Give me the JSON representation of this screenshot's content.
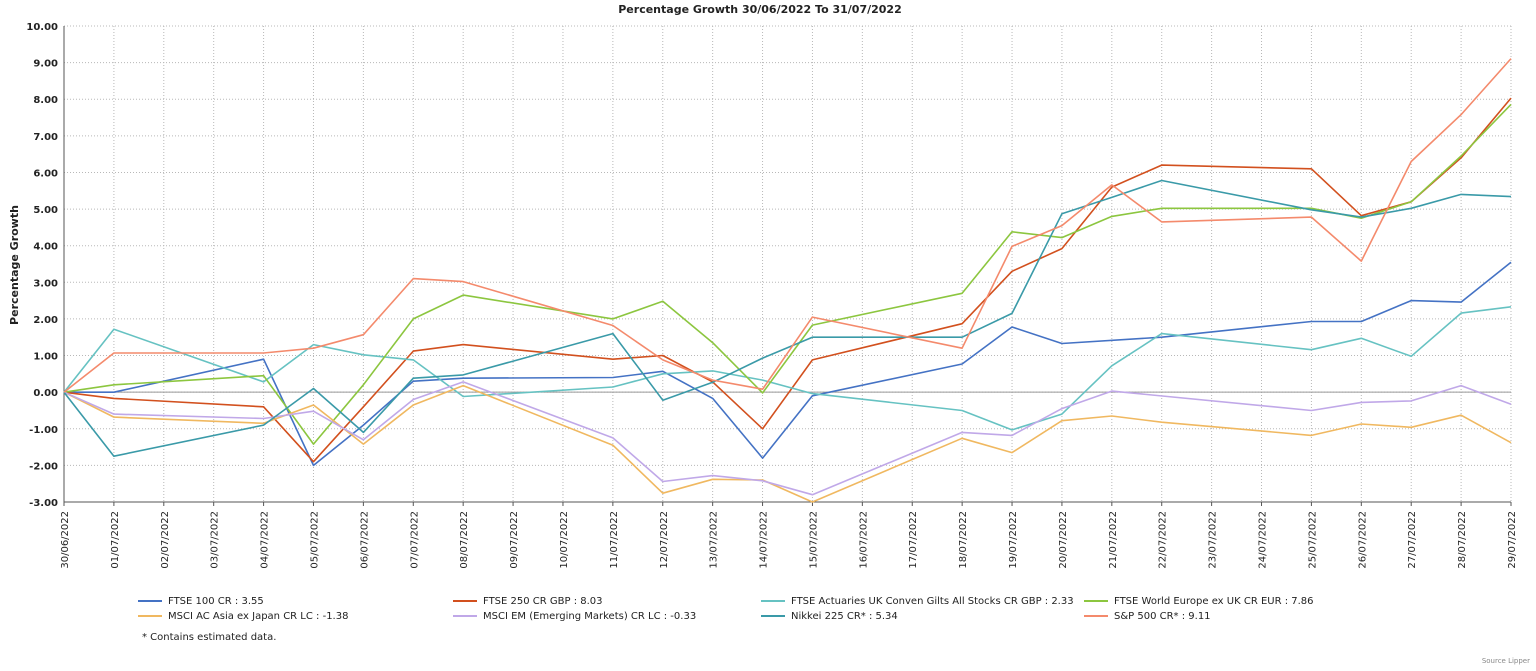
{
  "chart_data": {
    "type": "line",
    "title": "Percentage Growth 30/06/2022 To 31/07/2022",
    "ylabel": "Percentage Growth",
    "ylim": [
      -3,
      10
    ],
    "yticks": [
      "10.00",
      "9.00",
      "8.00",
      "7.00",
      "6.00",
      "5.00",
      "4.00",
      "3.00",
      "2.00",
      "1.00",
      "0.00",
      "-1.00",
      "-2.00",
      "-3.00"
    ],
    "grid": true,
    "categories": [
      "30/06/2022",
      "01/07/2022",
      "02/07/2022",
      "03/07/2022",
      "04/07/2022",
      "05/07/2022",
      "06/07/2022",
      "07/07/2022",
      "08/07/2022",
      "09/07/2022",
      "10/07/2022",
      "11/07/2022",
      "12/07/2022",
      "13/07/2022",
      "14/07/2022",
      "15/07/2022",
      "16/07/2022",
      "17/07/2022",
      "18/07/2022",
      "19/07/2022",
      "20/07/2022",
      "21/07/2022",
      "22/07/2022",
      "23/07/2022",
      "24/07/2022",
      "25/07/2022",
      "26/07/2022",
      "27/07/2022",
      "28/07/2022",
      "29/07/2022"
    ],
    "series": [
      {
        "name": "FTSE 100 CR : 3.55",
        "color": "#4472c4",
        "points": [
          [
            0,
            0
          ],
          [
            1,
            0.0
          ],
          [
            4,
            0.9
          ],
          [
            5,
            -2.0
          ],
          [
            6,
            -0.9
          ],
          [
            7,
            0.3
          ],
          [
            8,
            0.38
          ],
          [
            11,
            0.4
          ],
          [
            12,
            0.57
          ],
          [
            13,
            -0.17
          ],
          [
            14,
            -1.8
          ],
          [
            15,
            -0.1
          ],
          [
            18,
            0.77
          ],
          [
            19,
            1.78
          ],
          [
            20,
            1.33
          ],
          [
            22,
            1.5
          ],
          [
            25,
            1.93
          ],
          [
            26,
            1.93
          ],
          [
            27,
            2.5
          ],
          [
            28,
            2.46
          ],
          [
            29,
            3.55
          ]
        ]
      },
      {
        "name": "FTSE 250 CR GBP : 8.03",
        "color": "#d2501e",
        "points": [
          [
            0,
            0
          ],
          [
            1,
            -0.17
          ],
          [
            4,
            -0.4
          ],
          [
            5,
            -1.9
          ],
          [
            6,
            -0.4
          ],
          [
            7,
            1.12
          ],
          [
            8,
            1.3
          ],
          [
            11,
            0.9
          ],
          [
            12,
            1.0
          ],
          [
            13,
            0.28
          ],
          [
            14,
            -1.0
          ],
          [
            15,
            0.88
          ],
          [
            18,
            1.87
          ],
          [
            19,
            3.3
          ],
          [
            20,
            3.92
          ],
          [
            21,
            5.6
          ],
          [
            22,
            6.2
          ],
          [
            25,
            6.1
          ],
          [
            26,
            4.82
          ],
          [
            27,
            5.2
          ],
          [
            28,
            6.4
          ],
          [
            29,
            8.03
          ]
        ]
      },
      {
        "name": "FTSE Actuaries UK Conven Gilts All Stocks CR GBP : 2.33",
        "color": "#66c2c2",
        "points": [
          [
            0,
            0
          ],
          [
            1,
            1.72
          ],
          [
            4,
            0.28
          ],
          [
            5,
            1.3
          ],
          [
            6,
            1.02
          ],
          [
            7,
            0.88
          ],
          [
            8,
            -0.12
          ],
          [
            11,
            0.14
          ],
          [
            12,
            0.5
          ],
          [
            13,
            0.58
          ],
          [
            14,
            0.33
          ],
          [
            15,
            -0.04
          ],
          [
            18,
            -0.5
          ],
          [
            19,
            -1.03
          ],
          [
            20,
            -0.6
          ],
          [
            21,
            0.72
          ],
          [
            22,
            1.6
          ],
          [
            25,
            1.16
          ],
          [
            26,
            1.47
          ],
          [
            27,
            0.98
          ],
          [
            28,
            2.16
          ],
          [
            29,
            2.33
          ]
        ]
      },
      {
        "name": "FTSE World Europe ex UK CR EUR : 7.86",
        "color": "#8cc63f",
        "points": [
          [
            0,
            0
          ],
          [
            1,
            0.2
          ],
          [
            4,
            0.45
          ],
          [
            5,
            -1.42
          ],
          [
            6,
            0.2
          ],
          [
            7,
            2.0
          ],
          [
            8,
            2.65
          ],
          [
            11,
            2.0
          ],
          [
            12,
            2.48
          ],
          [
            13,
            1.35
          ],
          [
            14,
            -0.02
          ],
          [
            15,
            1.83
          ],
          [
            18,
            2.7
          ],
          [
            19,
            4.38
          ],
          [
            20,
            4.22
          ],
          [
            21,
            4.8
          ],
          [
            22,
            5.02
          ],
          [
            25,
            5.02
          ],
          [
            26,
            4.75
          ],
          [
            27,
            5.2
          ],
          [
            28,
            6.45
          ],
          [
            29,
            7.86
          ]
        ]
      },
      {
        "name": "MSCI AC Asia ex Japan CR LC : -1.38",
        "color": "#f0b860",
        "points": [
          [
            0,
            0
          ],
          [
            1,
            -0.68
          ],
          [
            4,
            -0.85
          ],
          [
            5,
            -0.35
          ],
          [
            6,
            -1.42
          ],
          [
            7,
            -0.35
          ],
          [
            8,
            0.18
          ],
          [
            11,
            -1.45
          ],
          [
            12,
            -2.76
          ],
          [
            13,
            -2.38
          ],
          [
            14,
            -2.4
          ],
          [
            15,
            -3.0
          ],
          [
            18,
            -1.26
          ],
          [
            19,
            -1.65
          ],
          [
            20,
            -0.78
          ],
          [
            21,
            -0.65
          ],
          [
            22,
            -0.82
          ],
          [
            25,
            -1.18
          ],
          [
            26,
            -0.87
          ],
          [
            27,
            -0.96
          ],
          [
            28,
            -0.63
          ],
          [
            29,
            -1.38
          ]
        ]
      },
      {
        "name": "MSCI EM (Emerging Markets) CR LC : -0.33",
        "color": "#c0a8e8",
        "points": [
          [
            0,
            0
          ],
          [
            1,
            -0.6
          ],
          [
            4,
            -0.72
          ],
          [
            5,
            -0.52
          ],
          [
            6,
            -1.3
          ],
          [
            7,
            -0.2
          ],
          [
            8,
            0.28
          ],
          [
            11,
            -1.25
          ],
          [
            12,
            -2.44
          ],
          [
            13,
            -2.28
          ],
          [
            14,
            -2.42
          ],
          [
            15,
            -2.8
          ],
          [
            18,
            -1.1
          ],
          [
            19,
            -1.18
          ],
          [
            20,
            -0.45
          ],
          [
            21,
            0.03
          ],
          [
            25,
            -0.5
          ],
          [
            26,
            -0.28
          ],
          [
            27,
            -0.24
          ],
          [
            28,
            0.18
          ],
          [
            29,
            -0.33
          ]
        ]
      },
      {
        "name": "Nikkei 225 CR* : 5.34",
        "color": "#3a9aa8",
        "points": [
          [
            0,
            0
          ],
          [
            1,
            -1.75
          ],
          [
            4,
            -0.9
          ],
          [
            5,
            0.1
          ],
          [
            6,
            -1.1
          ],
          [
            7,
            0.38
          ],
          [
            8,
            0.47
          ],
          [
            11,
            1.6
          ],
          [
            12,
            -0.22
          ],
          [
            13,
            0.27
          ],
          [
            14,
            0.93
          ],
          [
            15,
            1.5
          ],
          [
            18,
            1.5
          ],
          [
            19,
            2.15
          ],
          [
            20,
            4.87
          ],
          [
            21,
            5.32
          ],
          [
            22,
            5.78
          ],
          [
            25,
            4.98
          ],
          [
            26,
            4.78
          ],
          [
            27,
            5.02
          ],
          [
            28,
            5.4
          ],
          [
            29,
            5.34
          ]
        ]
      },
      {
        "name": "S&P 500 CR* : 9.11",
        "color": "#f48a6c",
        "points": [
          [
            0,
            0
          ],
          [
            1,
            1.07
          ],
          [
            4,
            1.07
          ],
          [
            5,
            1.2
          ],
          [
            6,
            1.57
          ],
          [
            7,
            3.1
          ],
          [
            8,
            3.02
          ],
          [
            11,
            1.82
          ],
          [
            12,
            0.88
          ],
          [
            13,
            0.33
          ],
          [
            14,
            0.08
          ],
          [
            15,
            2.05
          ],
          [
            18,
            1.2
          ],
          [
            19,
            3.98
          ],
          [
            20,
            4.55
          ],
          [
            21,
            5.66
          ],
          [
            22,
            4.65
          ],
          [
            25,
            4.78
          ],
          [
            26,
            3.58
          ],
          [
            27,
            6.3
          ],
          [
            28,
            7.58
          ],
          [
            29,
            9.11
          ]
        ]
      }
    ]
  },
  "footnote": "*  Contains estimated data.",
  "source": "Source Lipper"
}
